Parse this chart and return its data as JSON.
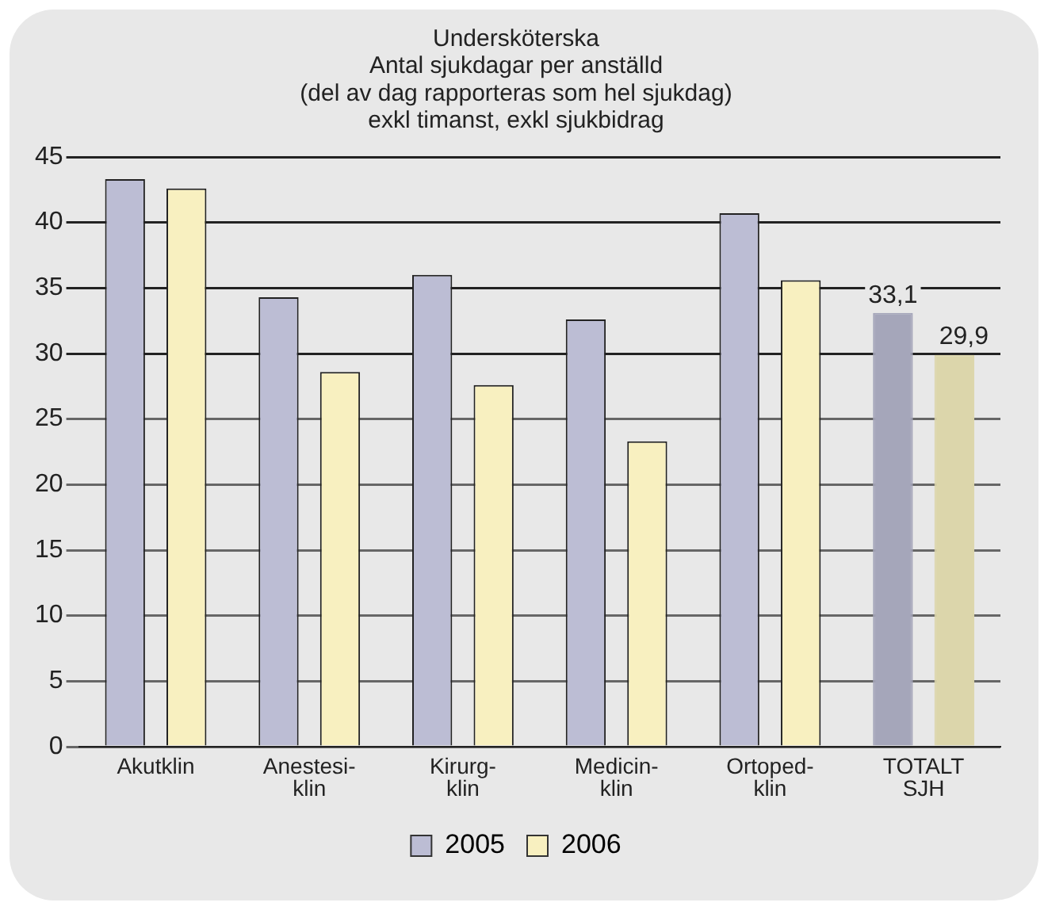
{
  "chart_data": {
    "type": "bar",
    "title": "Undersköterska\nAntal sjukdagar per anställd\n(del av dag rapporteras som hel sjukdag)\nexkl timanst, exkl sjukbidrag",
    "categories": [
      "Akutklin",
      "Anestesi-\nklin",
      "Kirurg-\nklin",
      "Medicin-\nklin",
      "Ortoped-\nklin",
      "TOTALT\nSJH"
    ],
    "series": [
      {
        "name": "2005",
        "color": "#bcbdd4",
        "colors": [
          "#bcbdd4",
          "#bcbdd4",
          "#bcbdd4",
          "#bcbdd4",
          "#bcbdd4",
          "#a5a6ba"
        ],
        "values": [
          43.3,
          34.3,
          36.0,
          32.6,
          40.7,
          33.1
        ],
        "value_labels": [
          null,
          null,
          null,
          null,
          null,
          "33,1"
        ]
      },
      {
        "name": "2006",
        "color": "#f8f0c0",
        "colors": [
          "#f8f0c0",
          "#f8f0c0",
          "#f8f0c0",
          "#f8f0c0",
          "#f8f0c0",
          "#dcd6ab"
        ],
        "values": [
          42.6,
          28.6,
          27.6,
          23.3,
          35.6,
          29.9
        ],
        "value_labels": [
          null,
          null,
          null,
          null,
          null,
          "29,9"
        ]
      }
    ],
    "ylim": [
      0,
      45
    ],
    "yticks": [
      0,
      5,
      10,
      15,
      20,
      25,
      30,
      35,
      40,
      45
    ],
    "grid": "y",
    "legend": "bottom"
  }
}
